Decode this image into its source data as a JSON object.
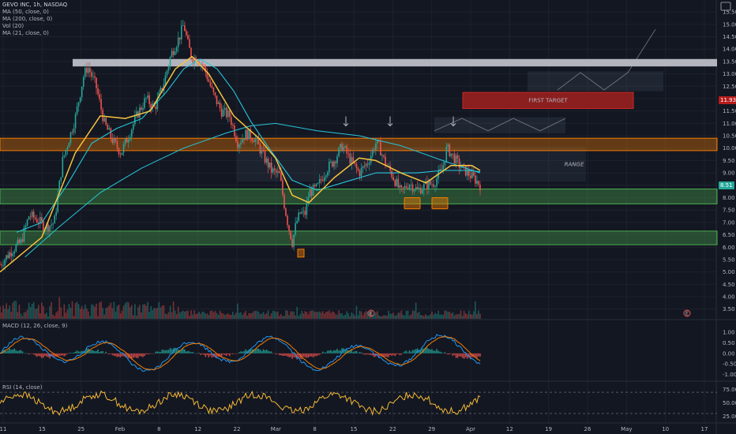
{
  "legend": {
    "symbol": "GEVO INC, 1h, NASDAQ",
    "ma50": "MA (50, close, 0)",
    "ma200": "MA (200, close, 0)",
    "vol": "Vol (20)",
    "ma21": "MA (21, close, 0)",
    "macd": "MACD (12, 26, close, 9)",
    "rsi": "RSI (14, close)"
  },
  "annotations": {
    "first_target": "FIRST TARGET",
    "range": "RANGE",
    "earnings_marker": "E"
  },
  "price_boxes": {
    "target_price": "11.93",
    "last_price": "8.51"
  },
  "chart_data": [
    {
      "type": "candlestick",
      "x_ticks": [
        "11",
        "15",
        "25",
        "Feb",
        "8",
        "12",
        "22",
        "Mar",
        "8",
        "15",
        "22",
        "29",
        "Apr",
        "12",
        "19",
        "26",
        "May",
        "10",
        "17"
      ],
      "y_ticks": [
        3.5,
        4.0,
        4.5,
        5.0,
        5.5,
        6.0,
        6.5,
        7.0,
        7.5,
        8.0,
        8.5,
        9.0,
        9.5,
        10.0,
        10.5,
        11.0,
        11.5,
        12.0,
        12.5,
        13.0,
        13.5,
        14.0,
        14.5,
        15.0,
        15.5
      ],
      "ylim": [
        3.3,
        15.6
      ],
      "close_path": [
        [
          0,
          5.3
        ],
        [
          3,
          5.9
        ],
        [
          5,
          6.2
        ],
        [
          7,
          7.3
        ],
        [
          9,
          7.1
        ],
        [
          11,
          6.8
        ],
        [
          13,
          7.0
        ],
        [
          15,
          9.5
        ],
        [
          18,
          11.2
        ],
        [
          20,
          12.9
        ],
        [
          21,
          13.3
        ],
        [
          23,
          12.5
        ],
        [
          25,
          11.0
        ],
        [
          27,
          10.3
        ],
        [
          29,
          9.8
        ],
        [
          31,
          10.6
        ],
        [
          33,
          11.4
        ],
        [
          35,
          12.0
        ],
        [
          37,
          11.6
        ],
        [
          39,
          12.5
        ],
        [
          41,
          13.8
        ],
        [
          43,
          14.5
        ],
        [
          44,
          15.0
        ],
        [
          45,
          14.2
        ],
        [
          46,
          13.6
        ],
        [
          47,
          13.7
        ],
        [
          49,
          13.2
        ],
        [
          51,
          12.2
        ],
        [
          53,
          11.5
        ],
        [
          55,
          11.3
        ],
        [
          57,
          10.2
        ],
        [
          59,
          10.6
        ],
        [
          61,
          10.4
        ],
        [
          63,
          9.7
        ],
        [
          65,
          9.1
        ],
        [
          67,
          8.9
        ],
        [
          68,
          7.8
        ],
        [
          69,
          6.9
        ],
        [
          70,
          6.2
        ],
        [
          71,
          7.0
        ],
        [
          72,
          7.4
        ],
        [
          73,
          7.3
        ],
        [
          74,
          8.2
        ],
        [
          76,
          8.4
        ],
        [
          78,
          9.1
        ],
        [
          80,
          9.5
        ],
        [
          82,
          10.1
        ],
        [
          84,
          9.5
        ],
        [
          86,
          9.0
        ],
        [
          88,
          9.4
        ],
        [
          90,
          10.2
        ],
        [
          91,
          10.0
        ],
        [
          92,
          9.5
        ],
        [
          94,
          8.9
        ],
        [
          96,
          8.2
        ],
        [
          98,
          8.6
        ],
        [
          100,
          8.3
        ],
        [
          102,
          8.5
        ],
        [
          104,
          8.6
        ],
        [
          106,
          9.2
        ],
        [
          107,
          10.0
        ],
        [
          108,
          9.8
        ],
        [
          110,
          9.3
        ],
        [
          112,
          9.0
        ],
        [
          114,
          8.7
        ],
        [
          115,
          8.51
        ]
      ],
      "ma21": [
        [
          0,
          5.0
        ],
        [
          10,
          6.4
        ],
        [
          18,
          9.8
        ],
        [
          24,
          11.3
        ],
        [
          30,
          11.2
        ],
        [
          36,
          11.5
        ],
        [
          42,
          13.2
        ],
        [
          46,
          13.7
        ],
        [
          50,
          13.0
        ],
        [
          56,
          11.3
        ],
        [
          62,
          10.4
        ],
        [
          66,
          9.6
        ],
        [
          70,
          8.1
        ],
        [
          74,
          7.8
        ],
        [
          80,
          8.8
        ],
        [
          86,
          9.6
        ],
        [
          90,
          9.5
        ],
        [
          96,
          9.0
        ],
        [
          102,
          8.6
        ],
        [
          108,
          9.3
        ],
        [
          113,
          9.3
        ],
        [
          115,
          9.1
        ]
      ],
      "ma50": [
        [
          4,
          6.6
        ],
        [
          10,
          7.0
        ],
        [
          16,
          8.5
        ],
        [
          22,
          10.2
        ],
        [
          28,
          10.8
        ],
        [
          34,
          11.2
        ],
        [
          40,
          12.3
        ],
        [
          44,
          13.2
        ],
        [
          48,
          13.6
        ],
        [
          52,
          13.2
        ],
        [
          56,
          12.3
        ],
        [
          60,
          11.1
        ],
        [
          64,
          10.1
        ],
        [
          70,
          8.7
        ],
        [
          76,
          8.3
        ],
        [
          82,
          8.6
        ],
        [
          90,
          9.0
        ],
        [
          100,
          9.0
        ],
        [
          106,
          9.1
        ],
        [
          112,
          9.1
        ],
        [
          115,
          9.05
        ]
      ],
      "ma200": [
        [
          6,
          5.6
        ],
        [
          14,
          6.8
        ],
        [
          24,
          8.2
        ],
        [
          34,
          9.2
        ],
        [
          44,
          10.0
        ],
        [
          54,
          10.6
        ],
        [
          60,
          10.9
        ],
        [
          66,
          11.0
        ],
        [
          76,
          10.7
        ],
        [
          86,
          10.5
        ],
        [
          96,
          10.1
        ],
        [
          106,
          9.5
        ],
        [
          115,
          9.0
        ]
      ],
      "zones": {
        "resistance": [
          9.9,
          10.4
        ],
        "support_upper": [
          7.75,
          8.35
        ],
        "support_lower": [
          6.1,
          6.65
        ],
        "supply": [
          13.3,
          13.6
        ],
        "first_target": [
          11.6,
          12.25
        ],
        "range": [
          8.65,
          10.05
        ]
      }
    },
    {
      "type": "bar",
      "title": "Vol (20)"
    },
    {
      "type": "line",
      "title": "MACD (12, 26, close, 9)",
      "y_ticks": [
        1.0,
        0.5,
        0.0,
        -0.5,
        -1.0
      ],
      "ylim": [
        -1.2,
        1.3
      ]
    },
    {
      "type": "line",
      "title": "RSI (14, close)",
      "y_ticks": [
        75.0,
        50.0,
        25.0
      ],
      "ylim": [
        18,
        82
      ],
      "levels": [
        70,
        30
      ]
    }
  ],
  "colors": {
    "bg": "#131722",
    "grid": "#1e222d",
    "up": "#26a69a",
    "down": "#ef5350",
    "ma21": "#f7c33d",
    "ma200": "#26c6da",
    "orange": "#f57c00",
    "green": "#4caf50",
    "rsi": "#f5b935"
  }
}
